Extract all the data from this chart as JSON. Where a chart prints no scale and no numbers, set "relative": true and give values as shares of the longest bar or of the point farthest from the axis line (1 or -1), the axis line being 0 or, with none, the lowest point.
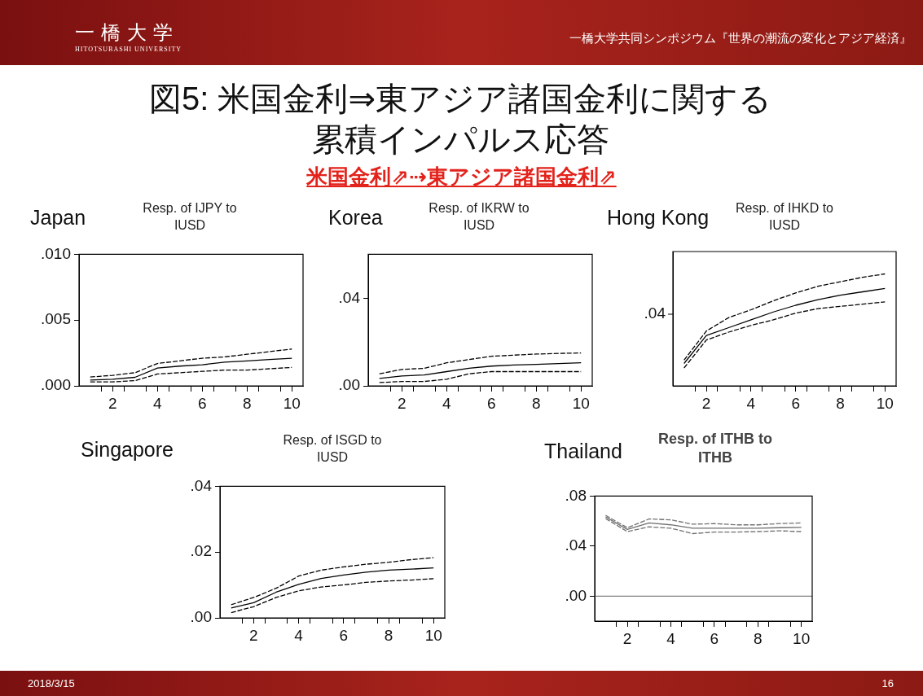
{
  "chart_data": [
    {
      "type": "other",
      "title": "図5: 米国金利⇒東アジア諸国金利に関する累積インパルス応答",
      "subtitle": "米国金利⇗⇢東アジア諸国金利⇗",
      "annotations": [
        "一橋大学",
        "HITOTSUBASHI UNIVERSITY",
        "一橋大学共同シンポジウム『世界の潮流の変化とアジア経済』",
        "2018/3/15",
        "16"
      ]
    },
    {
      "type": "line",
      "title": "Japan",
      "subtitle": "Resp. of IJPY to IUSD",
      "marker": "none",
      "x": [
        1,
        2,
        3,
        4,
        5,
        6,
        7,
        8,
        9,
        10
      ],
      "xlim": [
        0.5,
        10.5
      ],
      "xticks": [
        {
          "value": 1.5,
          "label": null
        },
        2,
        {
          "value": 2.5,
          "label": null
        },
        {
          "value": 3.5,
          "label": null
        },
        4,
        {
          "value": 4.5,
          "label": null
        },
        {
          "value": 5.5,
          "label": null
        },
        6,
        {
          "value": 6.5,
          "label": null
        },
        {
          "value": 7.5,
          "label": null
        },
        8,
        {
          "value": 8.5,
          "label": null
        },
        {
          "value": 9.5,
          "label": null
        },
        10
      ],
      "ylim": [
        0,
        0.01
      ],
      "yticks": [
        {
          "value": 0,
          "label": ".000"
        },
        {
          "value": 0.005,
          "label": ".005"
        },
        {
          "value": 0.01,
          "label": ".010"
        }
      ],
      "series": [
        {
          "color": "#000000",
          "line_style": "solid",
          "values": [
            0.00044,
            0.0005,
            0.00065,
            0.00135,
            0.0015,
            0.0016,
            0.0018,
            0.0019,
            0.002,
            0.0021
          ]
        },
        {
          "color": "#000000",
          "line_style": "dashed",
          "values": [
            0.00067,
            0.0008,
            0.001,
            0.0017,
            0.0019,
            0.0021,
            0.0022,
            0.0024,
            0.0026,
            0.0028
          ]
        },
        {
          "color": "#000000",
          "line_style": "dashed",
          "values": [
            0.0003,
            0.0003,
            0.0004,
            0.0009,
            0.001,
            0.0011,
            0.0012,
            0.0012,
            0.0013,
            0.0014
          ]
        }
      ]
    },
    {
      "type": "line",
      "title": "Korea",
      "subtitle": "Resp. of IKRW to IUSD",
      "marker": "none",
      "x": [
        1,
        2,
        3,
        4,
        5,
        6,
        7,
        8,
        9,
        10
      ],
      "xlim": [
        0.5,
        10.5
      ],
      "xticks": [
        {
          "value": 1.5,
          "label": null
        },
        2,
        {
          "value": 2.5,
          "label": null
        },
        {
          "value": 3.5,
          "label": null
        },
        4,
        {
          "value": 4.5,
          "label": null
        },
        {
          "value": 5.5,
          "label": null
        },
        6,
        {
          "value": 6.5,
          "label": null
        },
        {
          "value": 7.5,
          "label": null
        },
        8,
        {
          "value": 8.5,
          "label": null
        },
        {
          "value": 9.5,
          "label": null
        },
        10
      ],
      "ylim": [
        0,
        0.06
      ],
      "yticks": [
        {
          "value": 0,
          "label": ".00"
        },
        {
          "value": 0.04,
          "label": ".04"
        }
      ],
      "series": [
        {
          "color": "#000000",
          "line_style": "solid",
          "values": [
            0.0034,
            0.0045,
            0.005,
            0.0065,
            0.008,
            0.009,
            0.0095,
            0.0098,
            0.0102,
            0.0105
          ]
        },
        {
          "color": "#000000",
          "line_style": "dashed",
          "values": [
            0.0055,
            0.0075,
            0.008,
            0.0105,
            0.012,
            0.0135,
            0.014,
            0.0145,
            0.0148,
            0.015
          ]
        },
        {
          "color": "#000000",
          "line_style": "dashed",
          "values": [
            0.0015,
            0.002,
            0.002,
            0.003,
            0.0055,
            0.0065,
            0.0065,
            0.0065,
            0.0065,
            0.0065
          ]
        }
      ]
    },
    {
      "type": "line",
      "title": "Hong Kong",
      "subtitle": "Resp. of IHKD to IUSD",
      "marker": "none",
      "relative": true,
      "annotations": [
        ".04"
      ],
      "x": [
        1,
        2,
        3,
        4,
        5,
        6,
        7,
        8,
        9,
        10
      ],
      "xlim": [
        0.5,
        10.5
      ],
      "xticks": [
        {
          "value": 1.5,
          "label": null
        },
        2,
        {
          "value": 2.5,
          "label": null
        },
        {
          "value": 3.5,
          "label": null
        },
        4,
        {
          "value": 4.5,
          "label": null
        },
        {
          "value": 5.5,
          "label": null
        },
        6,
        {
          "value": 6.5,
          "label": null
        },
        {
          "value": 7.5,
          "label": null
        },
        8,
        {
          "value": 8.5,
          "label": null
        },
        {
          "value": 9.5,
          "label": null
        },
        10
      ],
      "series": [
        {
          "color": "#000000",
          "line_style": "solid",
          "values": [
            0.2,
            0.45,
            0.52,
            0.59,
            0.66,
            0.72,
            0.77,
            0.81,
            0.84,
            0.87
          ]
        },
        {
          "color": "#000000",
          "line_style": "dashed",
          "values": [
            0.23,
            0.49,
            0.61,
            0.68,
            0.76,
            0.83,
            0.89,
            0.93,
            0.97,
            1
          ]
        },
        {
          "color": "#000000",
          "line_style": "dashed",
          "values": [
            0.16,
            0.41,
            0.48,
            0.54,
            0.59,
            0.65,
            0.69,
            0.71,
            0.73,
            0.75
          ]
        }
      ]
    },
    {
      "type": "line",
      "title": "Singapore",
      "subtitle": "Resp. of ISGD to IUSD",
      "marker": "none",
      "x": [
        1,
        2,
        3,
        4,
        5,
        6,
        7,
        8,
        9,
        10
      ],
      "xlim": [
        0.5,
        10.5
      ],
      "xticks": [
        {
          "value": 1.5,
          "label": null
        },
        2,
        {
          "value": 2.5,
          "label": null
        },
        {
          "value": 3.5,
          "label": null
        },
        4,
        {
          "value": 4.5,
          "label": null
        },
        {
          "value": 5.5,
          "label": null
        },
        6,
        {
          "value": 6.5,
          "label": null
        },
        {
          "value": 7.5,
          "label": null
        },
        8,
        {
          "value": 8.5,
          "label": null
        },
        {
          "value": 9.5,
          "label": null
        },
        10
      ],
      "ylim": [
        0,
        0.04
      ],
      "yticks": [
        {
          "value": 0,
          "label": ".00"
        },
        {
          "value": 0.02,
          "label": ".02"
        },
        {
          "value": 0.04,
          "label": ".04"
        }
      ],
      "series": [
        {
          "color": "#000000",
          "line_style": "solid",
          "values": [
            0.003,
            0.0046,
            0.0078,
            0.0102,
            0.012,
            0.013,
            0.0139,
            0.0145,
            0.0148,
            0.0152
          ]
        },
        {
          "color": "#000000",
          "line_style": "dashed",
          "values": [
            0.004,
            0.0062,
            0.009,
            0.0127,
            0.0145,
            0.0155,
            0.0163,
            0.0169,
            0.0177,
            0.0183
          ]
        },
        {
          "color": "#000000",
          "line_style": "dashed",
          "values": [
            0.0016,
            0.0034,
            0.0062,
            0.0082,
            0.0094,
            0.01,
            0.0108,
            0.0112,
            0.0115,
            0.0119
          ]
        }
      ]
    },
    {
      "type": "line",
      "title": "Thailand",
      "subtitle": "Resp. of ITHB to ITHB",
      "marker": "none",
      "x": [
        1,
        2,
        3,
        4,
        5,
        6,
        7,
        8,
        9,
        10
      ],
      "xlim": [
        0.5,
        10.5
      ],
      "xticks": [
        {
          "value": 1.5,
          "label": null
        },
        2,
        {
          "value": 2.5,
          "label": null
        },
        {
          "value": 3.5,
          "label": null
        },
        4,
        {
          "value": 4.5,
          "label": null
        },
        {
          "value": 5.5,
          "label": null
        },
        6,
        {
          "value": 6.5,
          "label": null
        },
        {
          "value": 7.5,
          "label": null
        },
        8,
        {
          "value": 8.5,
          "label": null
        },
        {
          "value": 9.5,
          "label": null
        },
        10
      ],
      "ylim": [
        -0.02,
        0.08
      ],
      "yticks": [
        {
          "value": 0,
          "label": ".00"
        },
        {
          "value": 0.04,
          "label": ".04"
        },
        {
          "value": 0.08,
          "label": ".08"
        }
      ],
      "ref_lines": [
        {
          "axis": "y",
          "value": 0,
          "color": "#808080"
        }
      ],
      "series": [
        {
          "color": "#707070",
          "line_style": "solid",
          "values": [
            0.0634,
            0.0533,
            0.0585,
            0.057,
            0.0543,
            0.0543,
            0.0543,
            0.0543,
            0.0547,
            0.055
          ]
        },
        {
          "color": "#707070",
          "line_style": "dashed",
          "values": [
            0.0646,
            0.0547,
            0.0617,
            0.061,
            0.0575,
            0.058,
            0.057,
            0.057,
            0.058,
            0.0585
          ]
        },
        {
          "color": "#707070",
          "line_style": "dashed",
          "values": [
            0.062,
            0.0516,
            0.0554,
            0.0543,
            0.05,
            0.0512,
            0.0512,
            0.0516,
            0.0522,
            0.0516
          ]
        }
      ]
    }
  ]
}
